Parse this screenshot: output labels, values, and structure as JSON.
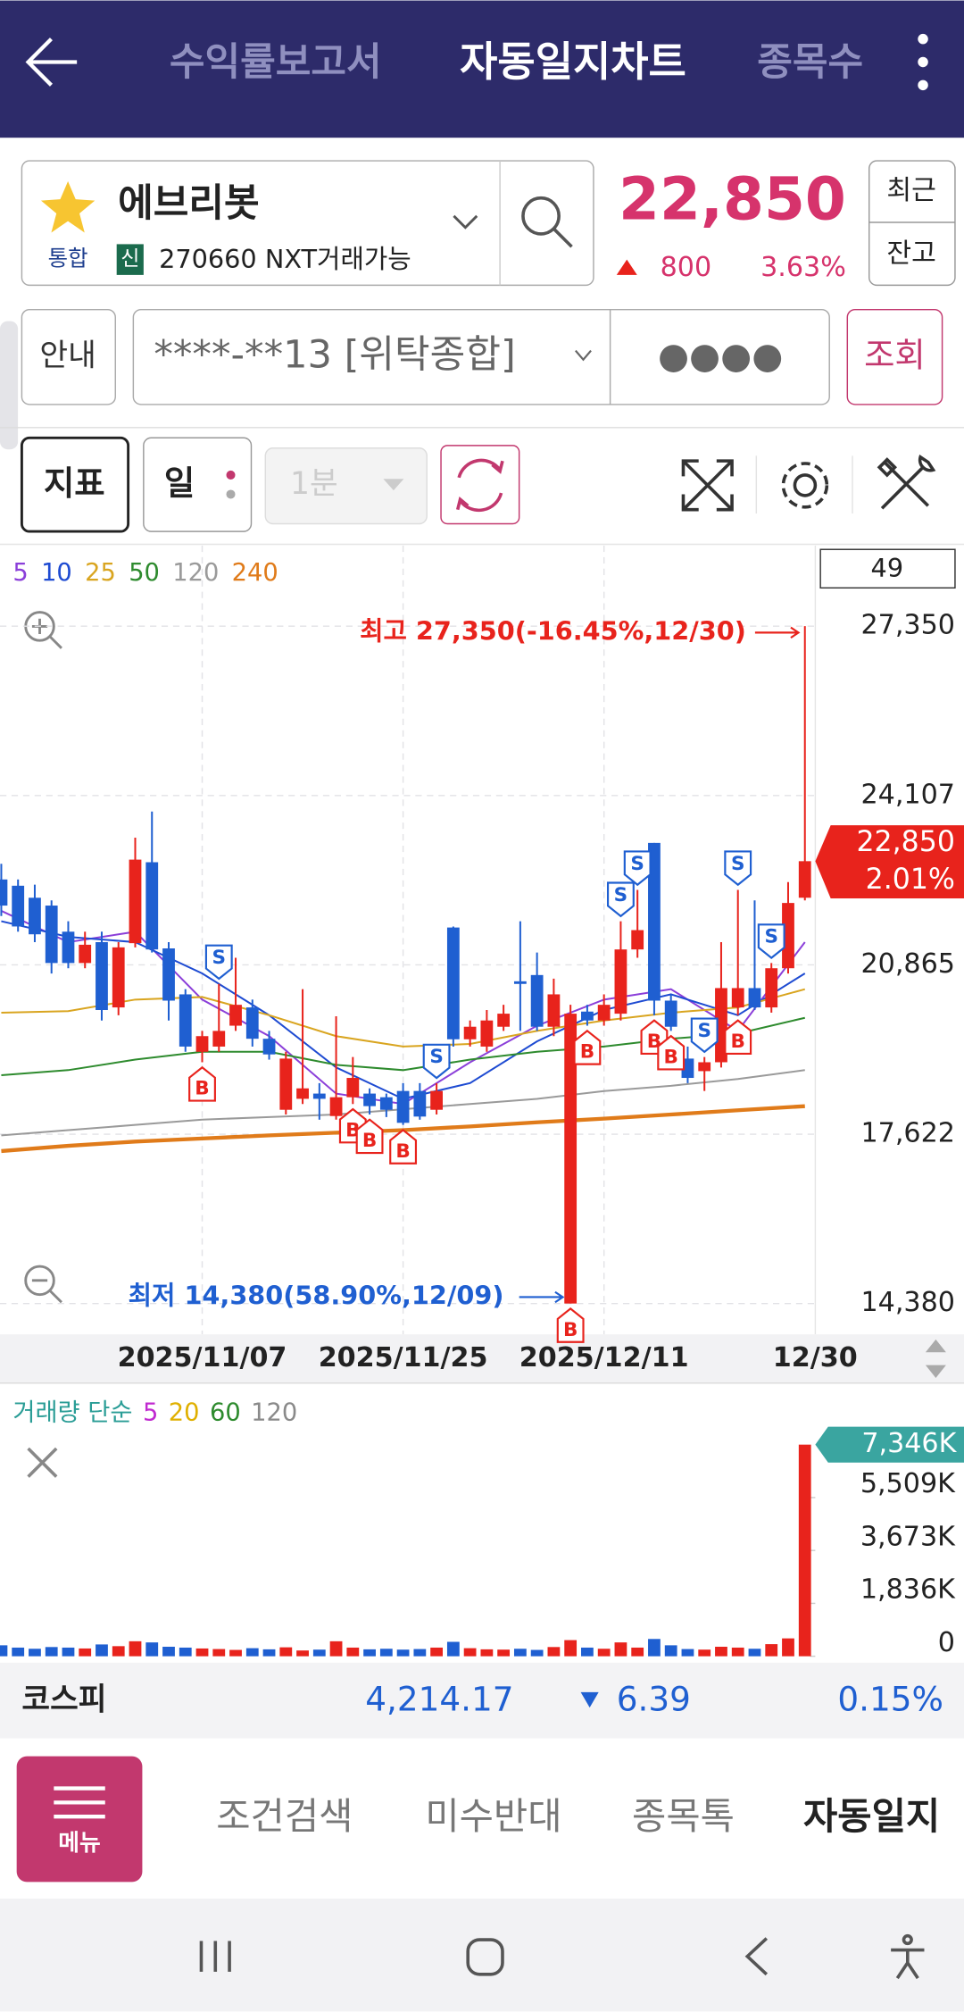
{
  "header": {
    "tabs": [
      "수익률보고서",
      "자동일지차트",
      "종목수"
    ]
  },
  "stock": {
    "name": "에브리봇",
    "market": "통합",
    "credit": "신",
    "code": "270660 NXT거래가능",
    "price": "22,850",
    "change": "800",
    "change_pct": "3.63%",
    "buttons": [
      "최근",
      "잔고"
    ]
  },
  "account": {
    "guide": "안내",
    "number": "****-**13 [위탁종합]",
    "password": "●●●●",
    "query": "조회"
  },
  "toolbar": {
    "indicator": "지표",
    "period": "일",
    "interval": "1분"
  },
  "chart_data": [
    {
      "type": "candlestick",
      "count": 49,
      "series": [
        {
          "name": "5",
          "color": "#8b3fd9",
          "x": [
            0,
            4,
            8,
            12,
            16,
            20,
            24,
            28,
            32,
            36,
            40,
            44,
            48
          ],
          "values": [
            21900,
            21300,
            21500,
            20200,
            19500,
            18400,
            18200,
            19000,
            19700,
            20200,
            20400,
            19600,
            21300
          ]
        },
        {
          "name": "10",
          "color": "#1e4bd2",
          "x": [
            0,
            4,
            8,
            12,
            16,
            20,
            24,
            28,
            32,
            36,
            40,
            44,
            48
          ],
          "values": [
            21700,
            21400,
            21300,
            20700,
            19900,
            18900,
            18300,
            18600,
            19400,
            20000,
            20300,
            19900,
            20700
          ]
        },
        {
          "name": "25",
          "color": "#d9a520",
          "x": [
            0,
            4,
            8,
            12,
            16,
            20,
            24,
            28,
            32,
            36,
            40,
            44,
            48
          ],
          "values": [
            19950,
            19980,
            20200,
            20250,
            19900,
            19500,
            19300,
            19350,
            19600,
            19800,
            19950,
            20050,
            20400
          ]
        },
        {
          "name": "50",
          "color": "#2e8b2e",
          "x": [
            0,
            4,
            8,
            12,
            16,
            20,
            24,
            28,
            32,
            36,
            40,
            44,
            48
          ],
          "values": [
            18750,
            18850,
            19050,
            19200,
            19200,
            18950,
            18850,
            19050,
            19200,
            19300,
            19450,
            19550,
            19850
          ]
        },
        {
          "name": "120",
          "color": "#9a9a9a",
          "x": [
            0,
            4,
            8,
            12,
            16,
            20,
            24,
            28,
            32,
            36,
            40,
            44,
            48
          ],
          "values": [
            17600,
            17700,
            17800,
            17900,
            17950,
            18000,
            18100,
            18200,
            18300,
            18450,
            18550,
            18680,
            18850
          ]
        },
        {
          "name": "240",
          "color": "#e07b1a",
          "x": [
            0,
            4,
            8,
            12,
            16,
            20,
            24,
            28,
            32,
            36,
            40,
            44,
            48
          ],
          "values": [
            17300,
            17400,
            17480,
            17540,
            17600,
            17650,
            17700,
            17770,
            17850,
            17920,
            18000,
            18080,
            18160
          ]
        }
      ],
      "categories": [
        null,
        null,
        null,
        null,
        null,
        null,
        null,
        null,
        null,
        null,
        null,
        null,
        "2025/11/07",
        null,
        null,
        null,
        null,
        null,
        null,
        null,
        null,
        null,
        null,
        null,
        "2025/11/25",
        null,
        null,
        null,
        null,
        null,
        null,
        null,
        null,
        null,
        null,
        null,
        "2025/12/11",
        null,
        null,
        null,
        null,
        null,
        null,
        null,
        null,
        null,
        null,
        null,
        "12/30"
      ],
      "candles": [
        [
          22500,
          22800,
          21800,
          22000
        ],
        [
          22380,
          22500,
          21500,
          21600
        ],
        [
          22150,
          22400,
          21300,
          21450
        ],
        [
          22000,
          22100,
          20700,
          20900
        ],
        [
          21500,
          21700,
          20800,
          20900
        ],
        [
          20900,
          21500,
          20800,
          21250
        ],
        [
          21300,
          21500,
          19800,
          20000
        ],
        [
          20050,
          21300,
          19900,
          21200
        ],
        [
          21280,
          23300,
          21200,
          22880
        ],
        [
          22830,
          23800,
          21100,
          21160
        ],
        [
          21180,
          21300,
          19800,
          20180
        ],
        [
          20300,
          20400,
          19200,
          19300
        ],
        [
          19200,
          19600,
          19000,
          19500
        ],
        [
          19300,
          20500,
          19200,
          19600
        ],
        [
          19700,
          21000,
          19600,
          20100
        ],
        [
          20050,
          20200,
          19300,
          19450
        ],
        [
          19450,
          19600,
          19050,
          19150
        ],
        [
          18090,
          19200,
          18000,
          19070
        ],
        [
          18300,
          20400,
          18200,
          18500
        ],
        [
          18400,
          18600,
          17900,
          18300
        ],
        [
          17970,
          19880,
          17900,
          18330
        ],
        [
          18330,
          19100,
          18200,
          18700
        ],
        [
          18400,
          18500,
          18000,
          18160
        ],
        [
          18330,
          18400,
          17950,
          18090
        ],
        [
          18450,
          18600,
          17800,
          17840
        ],
        [
          18450,
          18600,
          17900,
          17960
        ],
        [
          18090,
          18600,
          18000,
          18450
        ],
        [
          21580,
          21600,
          19300,
          19440
        ],
        [
          19440,
          19800,
          19300,
          19680
        ],
        [
          19300,
          20000,
          19200,
          19800
        ],
        [
          19680,
          20100,
          19600,
          19930
        ],
        [
          20550,
          21700,
          19600,
          20500
        ],
        [
          20670,
          21100,
          19600,
          19680
        ],
        [
          19680,
          20600,
          19500,
          20300
        ],
        [
          14380,
          20100,
          14380,
          19930
        ],
        [
          19970,
          20100,
          19700,
          19800
        ],
        [
          19800,
          20300,
          19700,
          20100
        ],
        [
          19930,
          21700,
          19800,
          21160
        ],
        [
          21160,
          22300,
          21000,
          21530
        ],
        [
          23200,
          23200,
          19900,
          20180
        ],
        [
          20180,
          20300,
          19600,
          19680
        ],
        [
          19070,
          19300,
          18600,
          18700
        ],
        [
          18830,
          19100,
          18450,
          19000
        ],
        [
          19000,
          21300,
          18900,
          20420
        ],
        [
          20050,
          22300,
          19900,
          20420
        ],
        [
          20420,
          22100,
          20000,
          20050
        ],
        [
          20050,
          20900,
          19950,
          20800
        ],
        [
          20800,
          22450,
          20700,
          22050
        ],
        [
          22150,
          27350,
          22100,
          22850
        ]
      ],
      "up_color": "#e8231c",
      "down_color": "#1f5fd1",
      "ylim": [
        13790,
        28820
      ],
      "yticks": [
        {
          "value": 14380,
          "label": "14,380"
        },
        {
          "value": 17622,
          "label": "17,622"
        },
        {
          "value": 20865,
          "label": "20,865"
        },
        {
          "value": 24107,
          "label": "24,107"
        },
        {
          "value": 27350,
          "label": "27,350"
        }
      ],
      "current": {
        "value": 22850,
        "label": "22,850",
        "change_label": "2.01%"
      },
      "annotations": {
        "high": "최고 27,350(-16.45%,12/30)",
        "low": "최저 14,380(58.90%,12/09)"
      },
      "signals": [
        {
          "label": "B",
          "index": 12
        },
        {
          "label": "S",
          "index": 13
        },
        {
          "label": "B",
          "index": 21
        },
        {
          "label": "B",
          "index": 22
        },
        {
          "label": "B",
          "index": 24
        },
        {
          "label": "S",
          "index": 26
        },
        {
          "label": "B",
          "index": 34
        },
        {
          "label": "B",
          "index": 35
        },
        {
          "label": "S",
          "index": 37
        },
        {
          "label": "S",
          "index": 38
        },
        {
          "label": "B",
          "index": 39
        },
        {
          "label": "B",
          "index": 40
        },
        {
          "label": "S",
          "index": 42
        },
        {
          "label": "B",
          "index": 44
        },
        {
          "label": "S",
          "index": 44
        },
        {
          "label": "S",
          "index": 46
        }
      ],
      "grid": true
    },
    {
      "type": "bar",
      "title": "거래량 단순",
      "legend": [
        {
          "name": "5",
          "color": "#c02ad0"
        },
        {
          "name": "20",
          "color": "#e0b000"
        },
        {
          "name": "60",
          "color": "#2e8b2e"
        },
        {
          "name": "120",
          "color": "#8a8a8a"
        }
      ],
      "values": [
        380,
        300,
        260,
        320,
        300,
        270,
        410,
        350,
        520,
        480,
        330,
        300,
        270,
        250,
        220,
        280,
        240,
        310,
        200,
        230,
        520,
        300,
        240,
        260,
        230,
        250,
        300,
        500,
        280,
        240,
        230,
        260,
        220,
        320,
        560,
        300,
        260,
        480,
        300,
        600,
        380,
        250,
        230,
        330,
        300,
        260,
        420,
        620,
        7346
      ],
      "ylim": [
        0,
        7346
      ],
      "yticks": [
        0,
        {
          "value": 1836,
          "label": "1,836K"
        },
        {
          "value": 3673,
          "label": "3,673K"
        },
        {
          "value": 5509,
          "label": "5,509K"
        }
      ],
      "current": {
        "value": 7346,
        "label": "7,346K"
      }
    }
  ],
  "index_bar": {
    "name": "코스피",
    "value": "4,214.17",
    "change": "6.39",
    "change_pct": "0.15%"
  },
  "nav": {
    "menu": "메뉴",
    "items": [
      "조건검색",
      "미수반대",
      "종목톡",
      "자동일지"
    ]
  }
}
